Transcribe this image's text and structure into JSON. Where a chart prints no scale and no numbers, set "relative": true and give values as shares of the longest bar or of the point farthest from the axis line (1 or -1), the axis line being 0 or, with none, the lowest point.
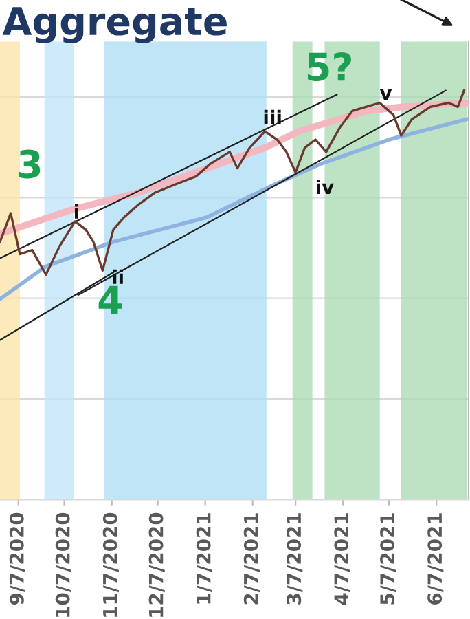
{
  "chart_data": {
    "type": "line",
    "title": "Aggregate",
    "relative": true,
    "grid": "y",
    "xlim": [
      "2020-08-26",
      "2021-06-28"
    ],
    "xticks": [
      {
        "value": "2020-09-07",
        "label": "9/7/2020"
      },
      {
        "value": "2020-10-07",
        "label": "10/7/2020"
      },
      {
        "value": "2020-11-07",
        "label": "11/7/2020"
      },
      {
        "value": "2020-12-07",
        "label": "12/7/2020"
      },
      {
        "value": "2021-01-07",
        "label": "1/7/2021"
      },
      {
        "value": "2021-02-07",
        "label": "2/7/2021"
      },
      {
        "value": "2021-03-07",
        "label": "3/7/2021"
      },
      {
        "value": "2021-04-07",
        "label": "4/7/2021"
      },
      {
        "value": "2021-05-07",
        "label": "5/7/2021"
      },
      {
        "value": "2021-06-07",
        "label": "6/7/2021"
      }
    ],
    "series": [
      {
        "color": "#f4b6bf",
        "x": [
          "2020-08-26",
          "2020-10-13",
          "2020-11-24",
          "2021-01-08",
          "2021-02-15",
          "2021-03-09",
          "2021-04-22",
          "2021-05-16",
          "2021-06-27"
        ],
        "values": [
          0.65,
          0.71,
          0.75,
          0.81,
          0.86,
          0.9,
          0.95,
          0.96,
          0.97
        ]
      },
      {
        "color": "#8fb3e0",
        "x": [
          "2020-08-26",
          "2020-09-25",
          "2020-11-08",
          "2021-01-08",
          "2021-02-21",
          "2021-03-23",
          "2021-05-07",
          "2021-06-27"
        ],
        "values": [
          0.49,
          0.57,
          0.63,
          0.69,
          0.77,
          0.82,
          0.88,
          0.93
        ]
      },
      {
        "color": "#222222",
        "x": [
          "2020-08-26",
          "2021-04-03"
        ],
        "values": [
          0.59,
          0.99
        ]
      },
      {
        "color": "#222222",
        "x": [
          "2020-10-16",
          "2021-06-13"
        ],
        "values": [
          0.5,
          1.0
        ]
      },
      {
        "color": "#222222",
        "x": [
          "2020-08-26",
          "2020-11-10"
        ],
        "values": [
          0.39,
          0.56
        ]
      },
      {
        "color": "#6b3a2e",
        "x": [
          "2020-08-26",
          "2020-09-02",
          "2020-09-08",
          "2020-09-16",
          "2020-09-25",
          "2020-10-04",
          "2020-10-14",
          "2020-10-21",
          "2020-10-26",
          "2020-11-01",
          "2020-11-08",
          "2020-11-15",
          "2020-11-24",
          "2020-12-05",
          "2020-12-18",
          "2021-01-01",
          "2021-01-10",
          "2021-01-23",
          "2021-01-28",
          "2021-02-05",
          "2021-02-15",
          "2021-02-23",
          "2021-03-01",
          "2021-03-07",
          "2021-03-13",
          "2021-03-20",
          "2021-03-27",
          "2021-04-05",
          "2021-04-13",
          "2021-04-22",
          "2021-05-01",
          "2021-05-10",
          "2021-05-15",
          "2021-05-22",
          "2021-06-03",
          "2021-06-15",
          "2021-06-21",
          "2021-06-25"
        ],
        "values": [
          0.63,
          0.7,
          0.6,
          0.61,
          0.55,
          0.62,
          0.68,
          0.66,
          0.63,
          0.56,
          0.66,
          0.69,
          0.72,
          0.75,
          0.77,
          0.79,
          0.82,
          0.85,
          0.81,
          0.86,
          0.9,
          0.88,
          0.85,
          0.8,
          0.86,
          0.88,
          0.85,
          0.91,
          0.95,
          0.96,
          0.97,
          0.94,
          0.89,
          0.93,
          0.96,
          0.97,
          0.96,
          1.0
        ]
      }
    ],
    "bands": [
      {
        "axis": "x",
        "from": "2020-08-26",
        "to": "2020-09-08",
        "color": "#fbe3a6"
      },
      {
        "axis": "x",
        "from": "2020-09-24",
        "to": "2020-10-13",
        "color": "#bfe3f5"
      },
      {
        "axis": "x",
        "from": "2020-11-02",
        "to": "2021-02-16",
        "color": "#a9dcf3"
      },
      {
        "axis": "x",
        "from": "2021-03-05",
        "to": "2021-03-18",
        "color": "#a8d8b0"
      },
      {
        "axis": "x",
        "from": "2021-03-26",
        "to": "2021-05-01",
        "color": "#a8d8b0"
      },
      {
        "axis": "x",
        "from": "2021-05-15",
        "to": "2021-06-27",
        "color": "#a8d8b0"
      }
    ],
    "annotations": [
      {
        "text": "3",
        "x": "2020-09-02",
        "y": 0.7
      },
      {
        "text": "4",
        "x": "2020-11-06",
        "y": 0.48
      },
      {
        "text": "5?",
        "x": "2021-03-29",
        "y": 1.05
      },
      {
        "text": "i",
        "x": "2020-10-15",
        "y": 0.7
      },
      {
        "text": "ii",
        "x": "2020-11-11",
        "y": 0.54
      },
      {
        "text": "iii",
        "x": "2021-02-20",
        "y": 0.93
      },
      {
        "text": "iv",
        "x": "2021-03-26",
        "y": 0.76
      },
      {
        "text": "v",
        "x": "2021-05-05",
        "y": 0.99
      }
    ]
  }
}
